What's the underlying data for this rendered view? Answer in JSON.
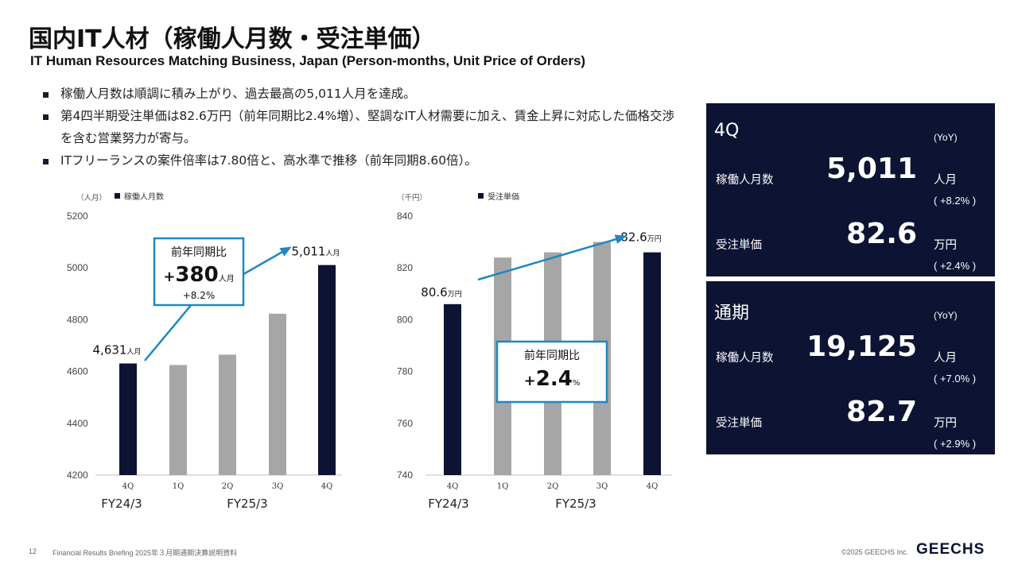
{
  "header": {
    "title": "国内IT人材（稼働人月数・受注単価）",
    "subtitle": "IT Human Resources Matching Business, Japan (Person-months, Unit Price of Orders)"
  },
  "bullets": [
    "稼働人月数は順調に積み上がり、過去最高の5,011人月を達成。",
    "第4四半期受注単価は82.6万円（前年同期比2.4%増）、堅調なIT人材需要に加え、賃金上昇に対応した価格交渉を含む営業努力が寄与。",
    "ITフリーランスの案件倍率は7.80倍と、高水準で推移（前年同期8.60倍）。"
  ],
  "colors": {
    "navy": "#0c1333",
    "gray": "#a6a6a6",
    "accent": "#1f87c4"
  },
  "chart_data": [
    {
      "type": "bar",
      "unit_label": "（人月）",
      "legend": "稼働人月数",
      "categories": [
        "4Q",
        "1Q",
        "2Q",
        "3Q",
        "4Q"
      ],
      "groups": [
        "FY24/3",
        "FY25/3"
      ],
      "values": [
        4631,
        4625,
        4665,
        4823,
        5011
      ],
      "highlight": [
        true,
        false,
        false,
        false,
        true
      ],
      "yticks": [
        "5200",
        "5000",
        "4800",
        "4600",
        "4400",
        "4200"
      ],
      "ylim": [
        4200,
        5200
      ],
      "start_label": {
        "value": "4,631",
        "unit": "人月"
      },
      "end_label": {
        "value": "5,011",
        "unit": "人月"
      },
      "callout": {
        "title": "前年同期比",
        "sign": "+",
        "value": "380",
        "unit": "人月",
        "sub": "+8.2%"
      }
    },
    {
      "type": "bar",
      "unit_label": "（千円）",
      "legend": "受注単価",
      "categories": [
        "4Q",
        "1Q",
        "2Q",
        "3Q",
        "4Q"
      ],
      "groups": [
        "FY24/3",
        "FY25/3"
      ],
      "values": [
        806,
        824,
        826,
        830,
        826
      ],
      "highlight": [
        true,
        false,
        false,
        false,
        true
      ],
      "yticks": [
        "840",
        "820",
        "800",
        "780",
        "760",
        "740"
      ],
      "ylim": [
        740,
        840
      ],
      "start_label": {
        "value": "80.6",
        "unit": "万円"
      },
      "end_label": {
        "value": "82.6",
        "unit": "万円"
      },
      "callout": {
        "title": "前年同期比",
        "sign": "+",
        "value": "2.4",
        "unit": "%"
      }
    }
  ],
  "summary": [
    {
      "period": "4Q",
      "yoy_header": "(YoY)",
      "rows": [
        {
          "label": "稼働人月数",
          "value": "5,011",
          "unit": "人月",
          "yoy": "( +8.2% )"
        },
        {
          "label": "受注単価",
          "value": "82.6",
          "unit": "万円",
          "yoy": "( +2.4% )"
        }
      ]
    },
    {
      "period": "通期",
      "yoy_header": "(YoY)",
      "rows": [
        {
          "label": "稼働人月数",
          "value": "19,125",
          "unit": "人月",
          "yoy": "( +7.0% )"
        },
        {
          "label": "受注単価",
          "value": "82.7",
          "unit": "万円",
          "yoy": "( +2.9% )"
        }
      ]
    }
  ],
  "footer": {
    "page": "12",
    "doc": "Financial Results Briefing 2025年３月期通期決算説明資料",
    "copyright": "©2025 GEECHS Inc.",
    "logo": "GEECHS"
  }
}
